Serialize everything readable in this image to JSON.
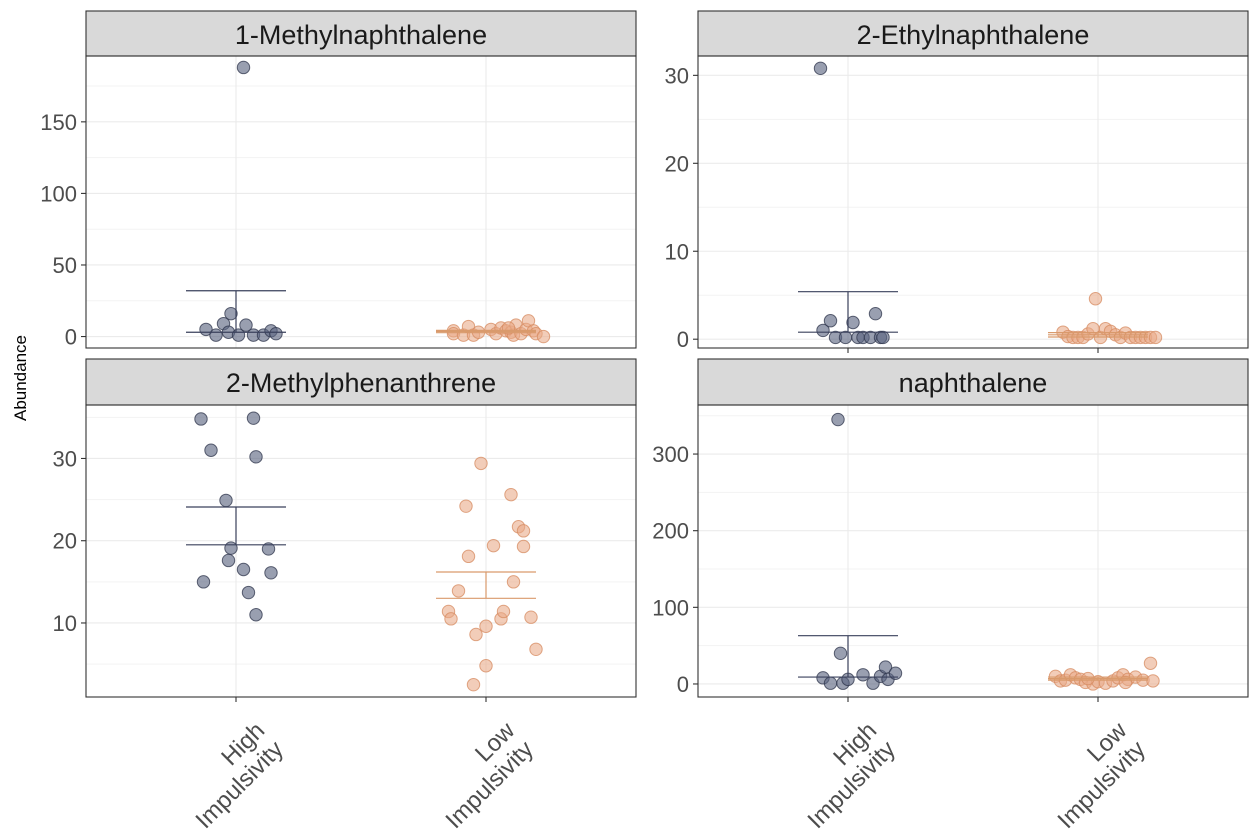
{
  "y_axis_label": "Abundance",
  "colors": {
    "high_fill": "#5a6480",
    "high_stroke": "#2c3349",
    "low_fill": "#e8a886",
    "low_stroke": "#d68a5f",
    "strip_bg": "#d9d9d9",
    "grid": "#ebebeb",
    "panel_border": "#333333",
    "tick_text": "#4d4d4d"
  },
  "chart_data": [
    {
      "type": "scatter",
      "title": "1-Methylnaphthalene",
      "categories": [
        "High\nImpulsivity",
        "Low\nImpulsivity"
      ],
      "ylim": [
        -8,
        196
      ],
      "yticks": [
        0,
        50,
        100,
        150
      ],
      "grid": true,
      "show_x_axis": false,
      "series": [
        {
          "name": "High Impulsivity",
          "points": [
            {
              "x": 0.88,
              "y": 5
            },
            {
              "x": 0.92,
              "y": 1
            },
            {
              "x": 0.95,
              "y": 9
            },
            {
              "x": 0.97,
              "y": 3
            },
            {
              "x": 0.98,
              "y": 16
            },
            {
              "x": 1.01,
              "y": 1
            },
            {
              "x": 1.03,
              "y": 188
            },
            {
              "x": 1.04,
              "y": 8
            },
            {
              "x": 1.07,
              "y": 1
            },
            {
              "x": 1.11,
              "y": 1
            },
            {
              "x": 1.14,
              "y": 4
            },
            {
              "x": 1.16,
              "y": 2
            }
          ],
          "mean": 3,
          "se_upper": 32
        },
        {
          "name": "Low Impulsivity",
          "points": [
            {
              "x": 1.87,
              "y": 4
            },
            {
              "x": 1.87,
              "y": 2
            },
            {
              "x": 1.91,
              "y": 1
            },
            {
              "x": 1.93,
              "y": 7
            },
            {
              "x": 1.95,
              "y": 1
            },
            {
              "x": 1.97,
              "y": 3
            },
            {
              "x": 2.02,
              "y": 5
            },
            {
              "x": 2.04,
              "y": 2
            },
            {
              "x": 2.06,
              "y": 6
            },
            {
              "x": 2.08,
              "y": 4
            },
            {
              "x": 2.1,
              "y": 3
            },
            {
              "x": 2.11,
              "y": 1
            },
            {
              "x": 2.12,
              "y": 8
            },
            {
              "x": 2.14,
              "y": 2
            },
            {
              "x": 2.16,
              "y": 5
            },
            {
              "x": 2.17,
              "y": 11
            },
            {
              "x": 2.19,
              "y": 4
            },
            {
              "x": 2.2,
              "y": 2
            },
            {
              "x": 2.23,
              "y": 0
            },
            {
              "x": 2.09,
              "y": 6
            }
          ],
          "mean": 3.5,
          "se_lower": 2.7,
          "se_upper": 4.3
        }
      ]
    },
    {
      "type": "scatter",
      "title": "2-Ethylnaphthalene",
      "categories": [
        "High\nImpulsivity",
        "Low\nImpulsivity"
      ],
      "ylim": [
        -1,
        32.2
      ],
      "yticks": [
        0,
        10,
        20,
        30
      ],
      "grid": true,
      "show_x_axis": true,
      "series": [
        {
          "name": "High Impulsivity",
          "points": [
            {
              "x": 0.89,
              "y": 30.8
            },
            {
              "x": 0.9,
              "y": 1
            },
            {
              "x": 0.93,
              "y": 2.1
            },
            {
              "x": 0.95,
              "y": 0.2
            },
            {
              "x": 0.99,
              "y": 0.2
            },
            {
              "x": 1.02,
              "y": 1.9
            },
            {
              "x": 1.04,
              "y": 0.2
            },
            {
              "x": 1.06,
              "y": 0.2
            },
            {
              "x": 1.09,
              "y": 0.2
            },
            {
              "x": 1.11,
              "y": 2.9
            },
            {
              "x": 1.13,
              "y": 0.2
            },
            {
              "x": 1.14,
              "y": 0.2
            }
          ],
          "mean": 0.8,
          "se_upper": 5.4
        },
        {
          "name": "Low Impulsivity",
          "points": [
            {
              "x": 1.86,
              "y": 0.8
            },
            {
              "x": 1.88,
              "y": 0.3
            },
            {
              "x": 1.9,
              "y": 0.2
            },
            {
              "x": 1.92,
              "y": 0.2
            },
            {
              "x": 1.94,
              "y": 0.2
            },
            {
              "x": 1.96,
              "y": 0.6
            },
            {
              "x": 1.98,
              "y": 1.2
            },
            {
              "x": 1.99,
              "y": 4.6
            },
            {
              "x": 2.01,
              "y": 0.2
            },
            {
              "x": 2.03,
              "y": 1.2
            },
            {
              "x": 2.05,
              "y": 0.9
            },
            {
              "x": 2.07,
              "y": 0.5
            },
            {
              "x": 2.09,
              "y": 0.2
            },
            {
              "x": 2.11,
              "y": 0.7
            },
            {
              "x": 2.13,
              "y": 0.2
            },
            {
              "x": 2.15,
              "y": 0.2
            },
            {
              "x": 2.17,
              "y": 0.2
            },
            {
              "x": 2.19,
              "y": 0.2
            },
            {
              "x": 2.21,
              "y": 0.2
            },
            {
              "x": 2.23,
              "y": 0.2
            }
          ],
          "mean": 0.5,
          "se_lower": 0.25,
          "se_upper": 0.75
        }
      ]
    },
    {
      "type": "scatter",
      "title": "2-Methylphenanthrene",
      "categories": [
        "High\nImpulsivity",
        "Low\nImpulsivity"
      ],
      "ylim": [
        1,
        36.5
      ],
      "yticks": [
        10,
        20,
        30
      ],
      "grid": true,
      "show_x_axis": true,
      "series": [
        {
          "name": "High Impulsivity",
          "points": [
            {
              "x": 0.86,
              "y": 34.8
            },
            {
              "x": 0.87,
              "y": 15
            },
            {
              "x": 0.9,
              "y": 31
            },
            {
              "x": 0.96,
              "y": 24.9
            },
            {
              "x": 0.97,
              "y": 17.6
            },
            {
              "x": 0.98,
              "y": 19.1
            },
            {
              "x": 1.03,
              "y": 16.5
            },
            {
              "x": 1.05,
              "y": 13.7
            },
            {
              "x": 1.07,
              "y": 34.9
            },
            {
              "x": 1.08,
              "y": 11
            },
            {
              "x": 1.08,
              "y": 30.2
            },
            {
              "x": 1.13,
              "y": 19
            },
            {
              "x": 1.14,
              "y": 16.1
            }
          ],
          "mean": 19.5,
          "se_lower": 19.5,
          "se_upper": 24.1
        },
        {
          "name": "Low Impulsivity",
          "points": [
            {
              "x": 1.85,
              "y": 11.4
            },
            {
              "x": 1.86,
              "y": 10.5
            },
            {
              "x": 1.89,
              "y": 13.9
            },
            {
              "x": 1.92,
              "y": 24.2
            },
            {
              "x": 1.93,
              "y": 18.1
            },
            {
              "x": 1.95,
              "y": 2.5
            },
            {
              "x": 1.96,
              "y": 8.6
            },
            {
              "x": 1.98,
              "y": 29.4
            },
            {
              "x": 2.0,
              "y": 9.6
            },
            {
              "x": 2.0,
              "y": 4.8
            },
            {
              "x": 2.03,
              "y": 19.4
            },
            {
              "x": 2.06,
              "y": 10.5
            },
            {
              "x": 2.07,
              "y": 11.4
            },
            {
              "x": 2.1,
              "y": 25.6
            },
            {
              "x": 2.11,
              "y": 15
            },
            {
              "x": 2.13,
              "y": 21.7
            },
            {
              "x": 2.15,
              "y": 21.2
            },
            {
              "x": 2.15,
              "y": 19.3
            },
            {
              "x": 2.18,
              "y": 10.7
            },
            {
              "x": 2.2,
              "y": 6.8
            }
          ],
          "mean": 13,
          "se_lower": 13,
          "se_upper": 16.2
        }
      ]
    },
    {
      "type": "scatter",
      "title": "naphthalene",
      "categories": [
        "High\nImpulsivity",
        "Low\nImpulsivity"
      ],
      "ylim": [
        -17,
        364
      ],
      "yticks": [
        0,
        100,
        200,
        300
      ],
      "grid": true,
      "show_x_axis": true,
      "series": [
        {
          "name": "High Impulsivity",
          "points": [
            {
              "x": 0.9,
              "y": 8
            },
            {
              "x": 0.93,
              "y": 1
            },
            {
              "x": 0.96,
              "y": 345
            },
            {
              "x": 0.97,
              "y": 40
            },
            {
              "x": 0.98,
              "y": 1
            },
            {
              "x": 1.0,
              "y": 6
            },
            {
              "x": 1.06,
              "y": 12
            },
            {
              "x": 1.1,
              "y": 1
            },
            {
              "x": 1.13,
              "y": 10
            },
            {
              "x": 1.15,
              "y": 22
            },
            {
              "x": 1.16,
              "y": 6
            },
            {
              "x": 1.19,
              "y": 14
            }
          ],
          "mean": 9,
          "se_upper": 63
        },
        {
          "name": "Low Impulsivity",
          "points": [
            {
              "x": 1.83,
              "y": 10
            },
            {
              "x": 1.85,
              "y": 4
            },
            {
              "x": 1.87,
              "y": 5
            },
            {
              "x": 1.89,
              "y": 12
            },
            {
              "x": 1.91,
              "y": 8
            },
            {
              "x": 1.93,
              "y": 6
            },
            {
              "x": 1.95,
              "y": 2
            },
            {
              "x": 1.98,
              "y": 0
            },
            {
              "x": 2.0,
              "y": 3
            },
            {
              "x": 2.03,
              "y": 1
            },
            {
              "x": 2.06,
              "y": 4
            },
            {
              "x": 2.08,
              "y": 8
            },
            {
              "x": 2.1,
              "y": 12
            },
            {
              "x": 2.12,
              "y": 6
            },
            {
              "x": 2.15,
              "y": 9
            },
            {
              "x": 2.18,
              "y": 5
            },
            {
              "x": 2.21,
              "y": 27
            },
            {
              "x": 2.22,
              "y": 4
            },
            {
              "x": 2.11,
              "y": 2
            },
            {
              "x": 1.96,
              "y": 7
            }
          ],
          "mean": 7,
          "se_lower": 5,
          "se_upper": 9
        }
      ]
    }
  ]
}
